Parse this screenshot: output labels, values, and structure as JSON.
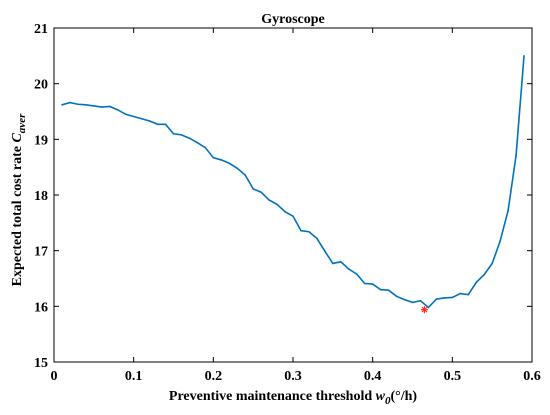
{
  "chart_data": {
    "type": "line",
    "title": "Gyroscope",
    "xlabel": "Preventive maintenance threshold",
    "xlabel_symbol": "w",
    "xlabel_sub": "0",
    "xlabel_unit": "(°/h)",
    "ylabel": "Expected total cost rate",
    "ylabel_symbol": "C",
    "ylabel_sub": "aver",
    "xlim": [
      0,
      0.6
    ],
    "ylim": [
      15,
      21
    ],
    "xticks": [
      0,
      0.1,
      0.2,
      0.3,
      0.4,
      0.5,
      0.6
    ],
    "xtick_labels": [
      "0",
      "0.1",
      "0.2",
      "0.3",
      "0.4",
      "0.5",
      "0.6"
    ],
    "yticks": [
      15,
      16,
      17,
      18,
      19,
      20,
      21
    ],
    "ytick_labels": [
      "15",
      "16",
      "17",
      "18",
      "19",
      "20",
      "21"
    ],
    "grid": false,
    "series": [
      {
        "color": "#0072BD",
        "x": [
          0.01,
          0.02,
          0.03,
          0.04,
          0.05,
          0.06,
          0.07,
          0.08,
          0.09,
          0.1,
          0.11,
          0.12,
          0.13,
          0.14,
          0.15,
          0.16,
          0.17,
          0.18,
          0.19,
          0.2,
          0.21,
          0.22,
          0.23,
          0.24,
          0.25,
          0.26,
          0.27,
          0.28,
          0.29,
          0.3,
          0.31,
          0.32,
          0.33,
          0.34,
          0.35,
          0.36,
          0.37,
          0.38,
          0.39,
          0.4,
          0.41,
          0.42,
          0.43,
          0.44,
          0.45,
          0.46,
          0.47,
          0.48,
          0.49,
          0.5,
          0.51,
          0.52,
          0.53,
          0.54,
          0.55,
          0.56,
          0.57,
          0.58,
          0.59
        ],
        "y": [
          19.62,
          19.66,
          19.63,
          19.62,
          19.6,
          19.58,
          19.59,
          19.53,
          19.45,
          19.41,
          19.37,
          19.33,
          19.27,
          19.27,
          19.1,
          19.08,
          19.02,
          18.94,
          18.85,
          18.67,
          18.63,
          18.57,
          18.48,
          18.36,
          18.11,
          18.05,
          17.91,
          17.83,
          17.7,
          17.62,
          17.36,
          17.34,
          17.22,
          16.99,
          16.77,
          16.8,
          16.67,
          16.58,
          16.41,
          16.4,
          16.3,
          16.29,
          16.18,
          16.12,
          16.07,
          16.1,
          15.98,
          16.13,
          16.15,
          16.16,
          16.23,
          16.21,
          16.43,
          16.57,
          16.77,
          17.17,
          17.72,
          18.71,
          20.5
        ]
      }
    ],
    "optimum": {
      "x": 0.465,
      "y": 15.94,
      "color": "#ff2a2a"
    }
  }
}
